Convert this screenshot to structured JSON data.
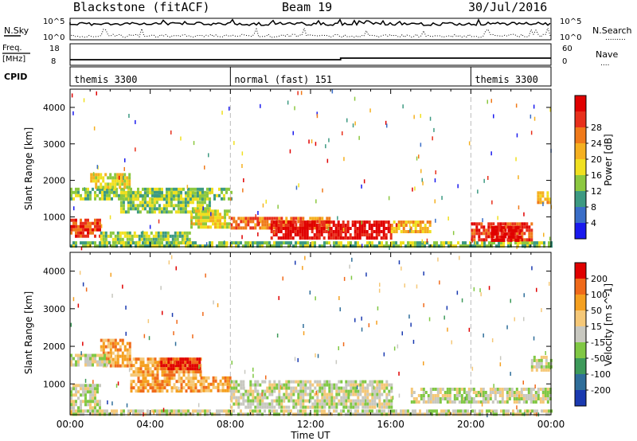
{
  "header": {
    "station": "Blackstone (fitACF)",
    "beam": "Beam 19",
    "date": "30/Jul/2016"
  },
  "noise_panel": {
    "left_label": "N.Sky",
    "right_label": "N.Search",
    "right_legend": ".........",
    "left_ticks": [
      "10^5",
      "10^0"
    ],
    "right_ticks": [
      "10^5",
      "10^0"
    ]
  },
  "freq_panel": {
    "left_label_1": "Freq.",
    "left_label_2": "[MHz]",
    "left_ticks": [
      "18",
      "8"
    ],
    "right_label": "Nave",
    "right_legend": "....",
    "right_ticks": [
      "60",
      "0"
    ]
  },
  "cpid_panel": {
    "label": "CPID",
    "segments": [
      {
        "name": "themis 3300",
        "start_hour": 0
      },
      {
        "name": "normal (fast) 151",
        "start_hour": 8
      },
      {
        "name": "themis 3300",
        "start_hour": 20
      }
    ]
  },
  "x_axis": {
    "title": "Time UT",
    "range_hours": [
      0,
      24
    ],
    "tick_labels": [
      "00:00",
      "04:00",
      "08:00",
      "12:00",
      "16:00",
      "20:00",
      "00:00"
    ]
  },
  "chart_data": [
    {
      "type": "heatmap",
      "title": "",
      "xlabel": "Time UT",
      "ylabel": "Slant Range [km]",
      "ylim": [
        180,
        4500
      ],
      "y_tick_labels": [
        "1000",
        "2000",
        "3000",
        "4000"
      ],
      "colorbar_label": "Power [dB]",
      "colorbar_ticks": [
        "4",
        "8",
        "12",
        "16",
        "20",
        "24",
        "28"
      ],
      "colorbar_colors": [
        "#1a1aee",
        "#3a6ec8",
        "#3d9a82",
        "#8cc840",
        "#f0e020",
        "#f5b020",
        "#f07a1a",
        "#e8301c",
        "#e00000"
      ],
      "regions": [
        {
          "t0": 0.0,
          "t1": 8.0,
          "r0": 1500,
          "r1": 1800,
          "level": 3
        },
        {
          "t0": 1.0,
          "t1": 3.0,
          "r0": 1800,
          "r1": 2200,
          "level": 4
        },
        {
          "t0": 2.5,
          "t1": 7.0,
          "r0": 1100,
          "r1": 1700,
          "level": 3
        },
        {
          "t0": 0.0,
          "t1": 1.5,
          "r0": 450,
          "r1": 950,
          "level": 7
        },
        {
          "t0": 1.5,
          "t1": 6.0,
          "r0": 300,
          "r1": 600,
          "level": 3
        },
        {
          "t0": 6.0,
          "t1": 8.0,
          "r0": 700,
          "r1": 1200,
          "level": 4
        },
        {
          "t0": 8.0,
          "t1": 13.0,
          "r0": 700,
          "r1": 1000,
          "level": 6
        },
        {
          "t0": 10.0,
          "t1": 16.0,
          "r0": 400,
          "r1": 900,
          "level": 8
        },
        {
          "t0": 16.0,
          "t1": 18.0,
          "r0": 600,
          "r1": 900,
          "level": 5
        },
        {
          "t0": 0.0,
          "t1": 24.0,
          "r0": 180,
          "r1": 330,
          "level": 3
        },
        {
          "t0": 20.0,
          "t1": 23.0,
          "r0": 350,
          "r1": 850,
          "level": 7
        },
        {
          "t0": 21.0,
          "t1": 22.5,
          "r0": 400,
          "r1": 750,
          "level": 8
        },
        {
          "t0": 23.3,
          "t1": 24.0,
          "r0": 1400,
          "r1": 1700,
          "level": 5
        }
      ]
    },
    {
      "type": "heatmap",
      "title": "",
      "xlabel": "Time UT",
      "ylabel": "Slant Range [km]",
      "ylim": [
        180,
        4500
      ],
      "y_tick_labels": [
        "1000",
        "2000",
        "3000",
        "4000"
      ],
      "colorbar_label": "Velocity [m s^-1]",
      "colorbar_ticks": [
        "200",
        "100",
        "50",
        "15",
        "-15",
        "-50",
        "-100",
        "-200"
      ],
      "colorbar_colors": [
        "#1a3ab0",
        "#2f6e9a",
        "#3d9a5a",
        "#80c844",
        "#c8c8c0",
        "#f5c878",
        "#f5a020",
        "#f06a1a",
        "#e00000"
      ],
      "regions": [
        {
          "t0": 0.0,
          "t1": 1.5,
          "r0": 400,
          "r1": 1000,
          "level": 4
        },
        {
          "t0": 1.5,
          "t1": 3.0,
          "r0": 1500,
          "r1": 2200,
          "level": 6
        },
        {
          "t0": 3.0,
          "t1": 6.5,
          "r0": 800,
          "r1": 1700,
          "level": 6
        },
        {
          "t0": 4.5,
          "t1": 6.5,
          "r0": 1400,
          "r1": 1700,
          "level": 8
        },
        {
          "t0": 6.5,
          "t1": 8.0,
          "r0": 800,
          "r1": 1200,
          "level": 6
        },
        {
          "t0": 0.0,
          "t1": 2.0,
          "r0": 1500,
          "r1": 1800,
          "level": 4
        },
        {
          "t0": 8.0,
          "t1": 16.0,
          "r0": 400,
          "r1": 1100,
          "level": 4
        },
        {
          "t0": 0.0,
          "t1": 24.0,
          "r0": 180,
          "r1": 320,
          "level": 4
        },
        {
          "t0": 17.0,
          "t1": 24.0,
          "r0": 500,
          "r1": 900,
          "level": 4
        },
        {
          "t0": 23.0,
          "t1": 24.0,
          "r0": 1350,
          "r1": 1750,
          "level": 4
        }
      ]
    }
  ]
}
